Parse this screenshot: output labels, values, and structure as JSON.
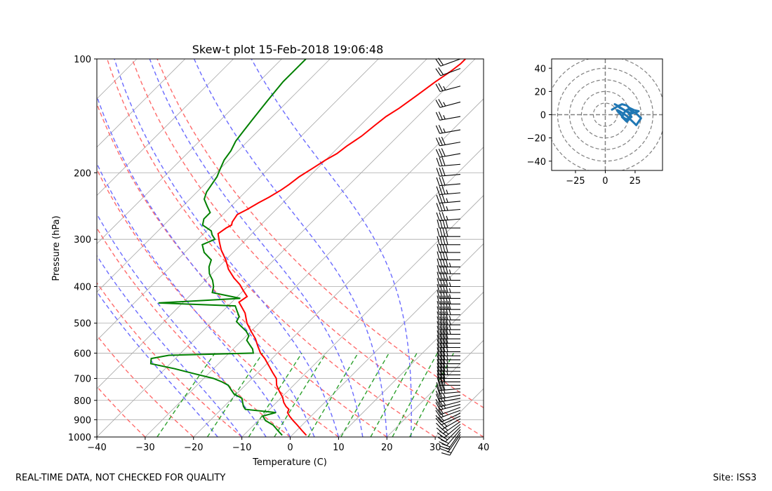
{
  "footer": {
    "left": "REAL-TIME DATA, NOT CHECKED FOR QUALITY",
    "right": "Site: ISS3"
  },
  "colors": {
    "temperature": "#ff0000",
    "dewpoint": "#008000",
    "dry_adiabat": "#ff6b6b",
    "moist_adiabat": "#6b6bff",
    "mixing_ratio": "#2ca02c",
    "isotherm": "#a9a9a9",
    "barbs": "#000000",
    "hodograph": "#1f77b4",
    "hodo_rings": "#808080"
  },
  "chart_data": [
    {
      "type": "line",
      "subtype": "skew-t",
      "title": "Skew-t plot 15-Feb-2018 19:06:48",
      "xlabel": "Temperature (C)",
      "ylabel": "Pressure (hPa)",
      "xlim": [
        -40,
        40
      ],
      "ylim": [
        1000,
        100
      ],
      "yscale": "log",
      "grid": true,
      "xticks": [
        -40,
        -30,
        -20,
        -10,
        0,
        10,
        20,
        30,
        40
      ],
      "yticks": [
        1000,
        900,
        800,
        700,
        600,
        500,
        400,
        300,
        200,
        100
      ],
      "xtick_labels": [
        "−40",
        "−30",
        "−20",
        "−10",
        "0",
        "10",
        "20",
        "30",
        "40"
      ],
      "ytick_labels": [
        "1000",
        "900",
        "800",
        "700",
        "600",
        "500",
        "400",
        "300",
        "200",
        "100"
      ],
      "series": [
        {
          "key": "temperature",
          "pressure": [
            990,
            960,
            930,
            905,
            880,
            862,
            845,
            830,
            810,
            785,
            760,
            730,
            700,
            675,
            650,
            620,
            600,
            575,
            550,
            525,
            500,
            470,
            440,
            425,
            410,
            395,
            380,
            360,
            340,
            320,
            305,
            290,
            280,
            275,
            270,
            258,
            250,
            240,
            232,
            222,
            215,
            205,
            195,
            185,
            178,
            170,
            160,
            150,
            142,
            135,
            125,
            115,
            108,
            103,
            100
          ],
          "temp": [
            3.0,
            1.0,
            -1.0,
            -2.8,
            -4.5,
            -5.6,
            -6.0,
            -7.2,
            -8.5,
            -9.8,
            -11.5,
            -13.5,
            -15.0,
            -17.0,
            -19.0,
            -21.5,
            -23.5,
            -25.5,
            -27.5,
            -30.0,
            -32.5,
            -35.0,
            -38.5,
            -38.0,
            -40.0,
            -42.0,
            -44.5,
            -47.5,
            -50.0,
            -53.0,
            -55.0,
            -57.0,
            -56.5,
            -56.0,
            -56.5,
            -57.0,
            -56.0,
            -55.0,
            -54.0,
            -53.0,
            -52.5,
            -52.0,
            -51.0,
            -50.0,
            -49.0,
            -48.5,
            -47.5,
            -47.0,
            -46.5,
            -45.5,
            -44.5,
            -43.5,
            -42.5,
            -42.0,
            -42.0
          ]
        },
        {
          "key": "dewpoint",
          "pressure": [
            990,
            960,
            930,
            905,
            880,
            862,
            845,
            830,
            810,
            790,
            770,
            750,
            730,
            715,
            700,
            680,
            660,
            640,
            620,
            608,
            600,
            585,
            570,
            555,
            540,
            525,
            510,
            495,
            480,
            465,
            450,
            442,
            430,
            415,
            400,
            385,
            370,
            355,
            340,
            325,
            310,
            300,
            292,
            285,
            275,
            265,
            255,
            245,
            235,
            225,
            215,
            205,
            195,
            185,
            175,
            165,
            155,
            145,
            135,
            125,
            115,
            107,
            100
          ],
          "dewpoint": [
            -2.0,
            -4.0,
            -6.0,
            -8.5,
            -10.0,
            -8.0,
            -15.0,
            -16.0,
            -17.0,
            -18.0,
            -20.5,
            -22.0,
            -23.5,
            -25.5,
            -28.0,
            -33.0,
            -38.0,
            -44.0,
            -45.0,
            -42.0,
            -25.0,
            -26.0,
            -27.5,
            -29.0,
            -29.5,
            -31.0,
            -33.0,
            -35.0,
            -35.5,
            -37.0,
            -38.5,
            -55.0,
            -39.0,
            -46.0,
            -47.0,
            -48.5,
            -50.5,
            -52.0,
            -53.0,
            -56.0,
            -58.0,
            -56.5,
            -58.0,
            -59.0,
            -62.0,
            -63.0,
            -63.0,
            -65.0,
            -67.0,
            -68.0,
            -68.5,
            -69.0,
            -70.0,
            -71.0,
            -71.5,
            -72.5,
            -73.0,
            -73.5,
            -74.0,
            -74.5,
            -75.0,
            -75.0,
            -75.0
          ]
        }
      ],
      "dry_adiabats_theta_K": [
        -30,
        -20,
        -10,
        0,
        10,
        20,
        30,
        40,
        50
      ],
      "moist_adiabats_start_C": [
        -15,
        -10,
        -5,
        0,
        5,
        10,
        15,
        20,
        25
      ],
      "mixing_ratio_lines_g_per_kg": [
        0.4,
        1,
        2,
        3,
        5,
        8,
        12,
        16,
        20
      ],
      "wind_barbs": {
        "pressure": [
          1000,
          985,
          970,
          955,
          940,
          925,
          910,
          895,
          880,
          865,
          850,
          835,
          820,
          805,
          790,
          775,
          760,
          745,
          730,
          715,
          700,
          685,
          670,
          655,
          640,
          625,
          610,
          595,
          580,
          565,
          550,
          535,
          520,
          505,
          490,
          475,
          460,
          445,
          430,
          415,
          400,
          385,
          370,
          355,
          340,
          325,
          310,
          295,
          280,
          265,
          250,
          238,
          226,
          214,
          202,
          190,
          178,
          166,
          154,
          142,
          130,
          118,
          106,
          100
        ],
        "speed_kt": [
          15,
          15,
          20,
          20,
          20,
          25,
          25,
          25,
          20,
          20,
          20,
          20,
          25,
          25,
          25,
          25,
          30,
          30,
          30,
          30,
          30,
          35,
          35,
          35,
          35,
          35,
          35,
          40,
          40,
          40,
          40,
          45,
          45,
          45,
          45,
          50,
          50,
          50,
          45,
          45,
          45,
          45,
          45,
          45,
          40,
          40,
          40,
          40,
          40,
          35,
          35,
          35,
          35,
          30,
          30,
          30,
          30,
          30,
          25,
          25,
          25,
          25,
          20,
          20
        ],
        "direction_deg": [
          210,
          215,
          215,
          220,
          225,
          230,
          235,
          240,
          245,
          245,
          250,
          250,
          255,
          255,
          260,
          260,
          265,
          265,
          270,
          270,
          270,
          270,
          270,
          270,
          270,
          270,
          270,
          270,
          270,
          270,
          270,
          270,
          270,
          270,
          270,
          270,
          270,
          270,
          270,
          270,
          270,
          270,
          270,
          270,
          270,
          270,
          270,
          270,
          270,
          265,
          265,
          265,
          265,
          265,
          265,
          265,
          260,
          260,
          260,
          260,
          255,
          255,
          250,
          250
        ]
      }
    },
    {
      "type": "line",
      "subtype": "hodograph",
      "title": "",
      "xlim": [
        -45,
        48
      ],
      "ylim": [
        -48,
        48
      ],
      "xticks": [
        -25,
        0,
        25
      ],
      "xtick_labels": [
        "−25",
        "0",
        "25"
      ],
      "yticks": [
        -40,
        -20,
        0,
        20,
        40
      ],
      "ytick_labels": [
        "−40",
        "−20",
        "0",
        "20",
        "40"
      ],
      "rings": [
        10,
        20,
        30,
        40,
        50
      ],
      "u": [
        5,
        10,
        14,
        18,
        20,
        24,
        28,
        26,
        22,
        20,
        18,
        16,
        14,
        12,
        10,
        8,
        10,
        13,
        16,
        19,
        21,
        22,
        20,
        18,
        16,
        14,
        12,
        11,
        10,
        12,
        15,
        18,
        20,
        22,
        24,
        26,
        28,
        30,
        26,
        22,
        20,
        18,
        16,
        15,
        14,
        16,
        18,
        20,
        21
      ],
      "v": [
        4,
        7,
        9,
        8,
        6,
        4,
        3,
        2,
        1,
        2,
        3,
        4,
        5,
        6,
        8,
        9,
        8,
        6,
        4,
        2,
        0,
        -2,
        -3,
        -4,
        -3,
        -1,
        1,
        2,
        4,
        3,
        1,
        -1,
        -3,
        -5,
        -7,
        -9,
        -6,
        -3,
        1,
        3,
        5,
        4,
        2,
        0,
        -2,
        -4,
        -6,
        -4,
        -1
      ]
    }
  ]
}
